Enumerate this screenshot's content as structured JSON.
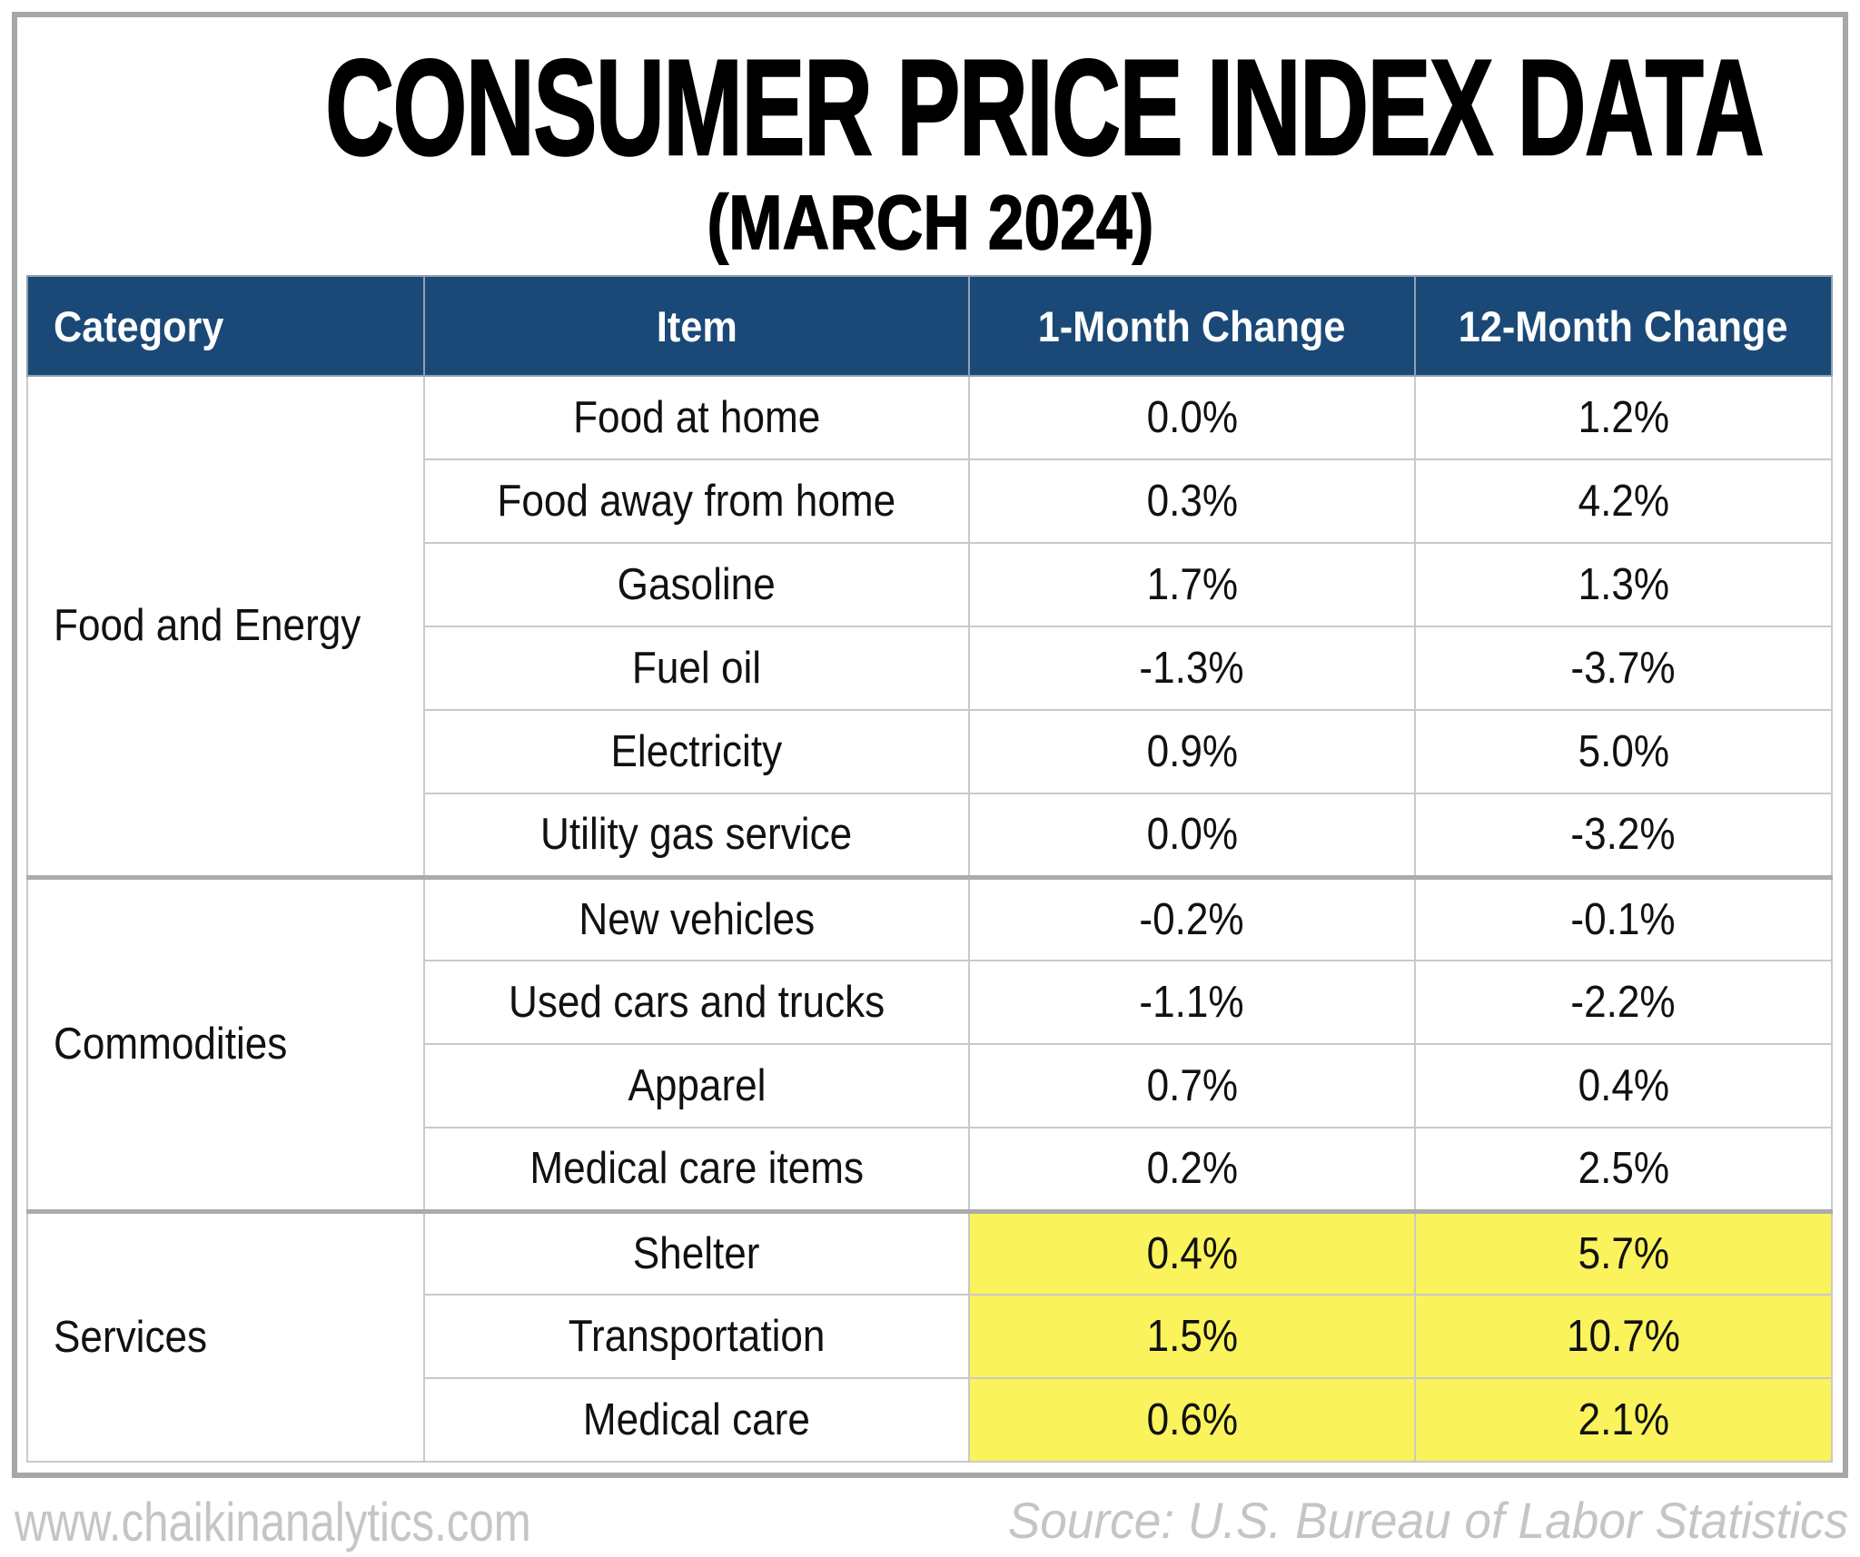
{
  "title": "CONSUMER PRICE INDEX DATA",
  "subtitle": "(MARCH 2024)",
  "table": {
    "headers": {
      "category": "Category",
      "item": "Item",
      "month1": "1-Month Change",
      "month12": "12-Month Change"
    },
    "groups": [
      {
        "category": "Food and Energy",
        "rows": [
          {
            "item": "Food at home",
            "m1": "0.0%",
            "m12": "1.2%"
          },
          {
            "item": "Food away from home",
            "m1": "0.3%",
            "m12": "4.2%"
          },
          {
            "item": "Gasoline",
            "m1": "1.7%",
            "m12": "1.3%"
          },
          {
            "item": "Fuel oil",
            "m1": "-1.3%",
            "m12": "-3.7%"
          },
          {
            "item": "Electricity",
            "m1": "0.9%",
            "m12": "5.0%"
          },
          {
            "item": "Utility gas service",
            "m1": "0.0%",
            "m12": "-3.2%"
          }
        ]
      },
      {
        "category": "Commodities",
        "rows": [
          {
            "item": "New vehicles",
            "m1": "-0.2%",
            "m12": "-0.1%"
          },
          {
            "item": "Used cars and trucks",
            "m1": "-1.1%",
            "m12": "-2.2%"
          },
          {
            "item": "Apparel",
            "m1": "0.7%",
            "m12": "0.4%"
          },
          {
            "item": "Medical care items",
            "m1": "0.2%",
            "m12": "2.5%"
          }
        ]
      },
      {
        "category": "Services",
        "highlighted": true,
        "rows": [
          {
            "item": "Shelter",
            "m1": "0.4%",
            "m12": "5.7%"
          },
          {
            "item": "Transportation",
            "m1": "1.5%",
            "m12": "10.7%"
          },
          {
            "item": "Medical care",
            "m1": "0.6%",
            "m12": "2.1%"
          }
        ]
      }
    ]
  },
  "footer": {
    "website": "www.chaikinanalytics.com",
    "source": "Source: U.S. Bureau of Labor Statistics"
  },
  "colors": {
    "header-bg": "#1a4978",
    "highlight": "#fbf35c",
    "group-border": "#ababab"
  },
  "chart_data": {
    "type": "table",
    "title": "CONSUMER PRICE INDEX DATA",
    "subtitle": "(MARCH 2024)",
    "columns": [
      "Category",
      "Item",
      "1-Month Change",
      "12-Month Change"
    ],
    "rows": [
      [
        "Food and Energy",
        "Food at home",
        0.0,
        1.2
      ],
      [
        "Food and Energy",
        "Food away from home",
        0.3,
        4.2
      ],
      [
        "Food and Energy",
        "Gasoline",
        1.7,
        1.3
      ],
      [
        "Food and Energy",
        "Fuel oil",
        -1.3,
        -3.7
      ],
      [
        "Food and Energy",
        "Electricity",
        0.9,
        5.0
      ],
      [
        "Food and Energy",
        "Utility gas service",
        0.0,
        -3.2
      ],
      [
        "Commodities",
        "New vehicles",
        -0.2,
        -0.1
      ],
      [
        "Commodities",
        "Used cars and trucks",
        -1.1,
        -2.2
      ],
      [
        "Commodities",
        "Apparel",
        0.7,
        0.4
      ],
      [
        "Commodities",
        "Medical care items",
        0.2,
        2.5
      ],
      [
        "Services",
        "Shelter",
        0.4,
        5.7
      ],
      [
        "Services",
        "Transportation",
        1.5,
        10.7
      ],
      [
        "Services",
        "Medical care",
        0.6,
        2.1
      ]
    ],
    "units": "percent",
    "highlighted_items": [
      "Shelter",
      "Transportation",
      "Medical care"
    ],
    "source": "U.S. Bureau of Labor Statistics"
  }
}
